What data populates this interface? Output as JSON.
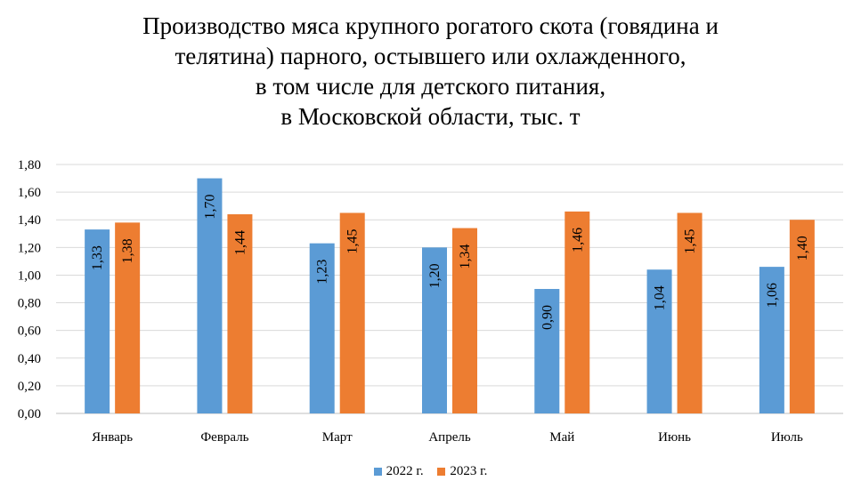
{
  "title_lines": [
    "Производство мяса крупного рогатого скота (говядина и",
    "телятина) парного, остывшего или охлажденного,",
    "в том числе для детского питания,",
    "в Московской области, тыс. т"
  ],
  "colors": {
    "s2022": "#5B9BD5",
    "s2023": "#ED7D31",
    "grid": "#D9D9D9",
    "text": "#000000"
  },
  "chart_data": {
    "type": "bar",
    "title": "Производство мяса крупного рогатого скота (говядина и телятина) парного, остывшего или охлажденного, в том числе для детского питания, в Московской области, тыс. т",
    "categories": [
      "Январь",
      "Февраль",
      "Март",
      "Апрель",
      "Май",
      "Июнь",
      "Июль"
    ],
    "series": [
      {
        "name": "2022 г.",
        "values": [
          1.33,
          1.7,
          1.23,
          1.2,
          0.9,
          1.04,
          1.06
        ],
        "labels": [
          "1,33",
          "1,70",
          "1,23",
          "1,20",
          "0,90",
          "1,04",
          "1,06"
        ]
      },
      {
        "name": "2023 г.",
        "values": [
          1.38,
          1.44,
          1.45,
          1.34,
          1.46,
          1.45,
          1.4
        ],
        "labels": [
          "1,38",
          "1,44",
          "1,45",
          "1,34",
          "1,46",
          "1,45",
          "1,40"
        ]
      }
    ],
    "ylim": [
      0,
      1.8
    ],
    "yticks": [
      0,
      0.2,
      0.4,
      0.6,
      0.8,
      1.0,
      1.2,
      1.4,
      1.6,
      1.8
    ],
    "ytick_labels": [
      "0,00",
      "0,20",
      "0,40",
      "0,60",
      "0,80",
      "1,00",
      "1,20",
      "1,40",
      "1,60",
      "1,80"
    ],
    "xlabel": "",
    "ylabel": "",
    "grid": true,
    "legend": "bottom"
  }
}
